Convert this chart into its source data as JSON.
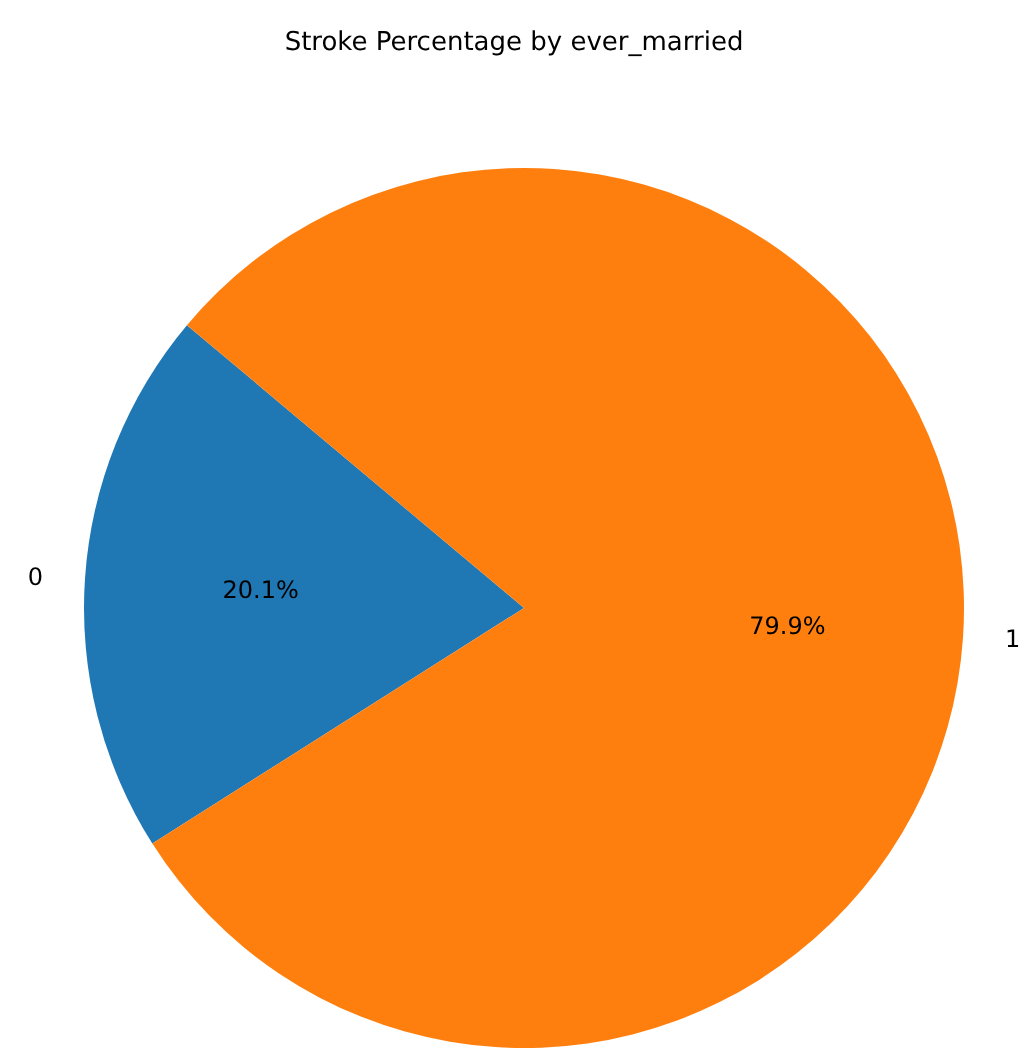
{
  "chart_data": {
    "type": "pie",
    "title": "Stroke Percentage by ever_married",
    "categories": [
      "0",
      "1"
    ],
    "values": [
      20.1,
      79.9
    ],
    "colors": [
      "#1f77b4",
      "#ff7f0e"
    ],
    "value_labels": [
      "20.1%",
      "79.9%"
    ]
  }
}
